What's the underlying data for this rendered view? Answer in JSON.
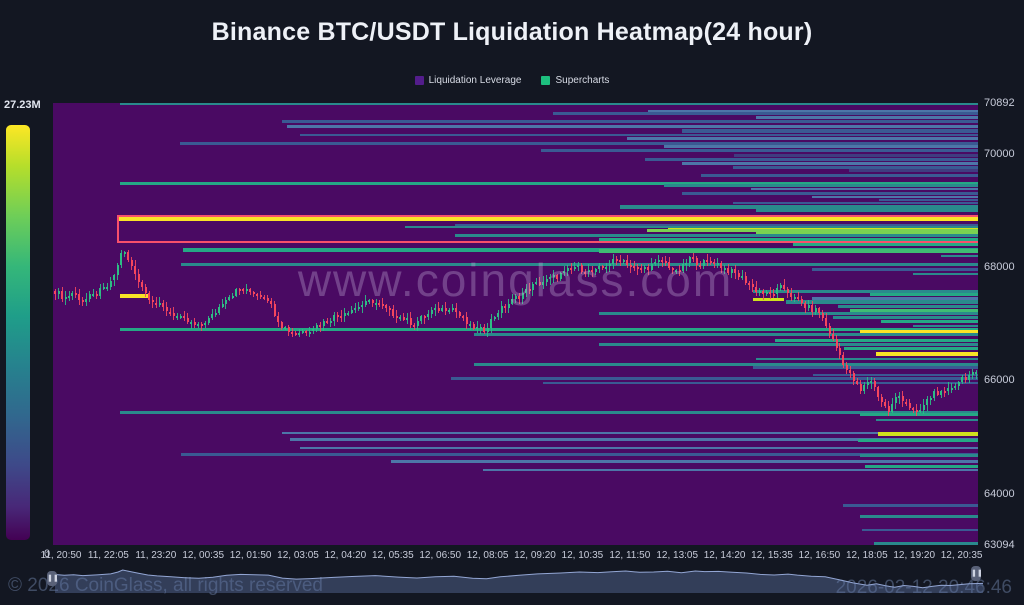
{
  "title": "Binance BTC/USDT Liquidation Heatmap(24 hour)",
  "legend": {
    "items": [
      {
        "label": "Liquidation Leverage",
        "color": "#531d8c"
      },
      {
        "label": "Supercharts",
        "color": "#1dbf7e"
      }
    ]
  },
  "watermark": "www.coinglass.com",
  "colorbar": {
    "max_label": "27.23M",
    "min_label": "0"
  },
  "footer": {
    "copyright": "© 2026 CoinGlass, all rights reserved",
    "timestamp": "2026-02-12 20:46:46"
  },
  "chart_data": {
    "type": "heatmap",
    "subtype": "liquidation-heatmap-with-candlesticks",
    "title": "Binance BTC/USDT Liquidation Heatmap(24 hour)",
    "ylim": [
      63094,
      70892
    ],
    "y_axis_labels": [
      70892,
      70000,
      68000,
      66000,
      64000,
      63094
    ],
    "x_axis_labels": [
      "11, 20:50",
      "11, 22:05",
      "11, 23:20",
      "12, 00:35",
      "12, 01:50",
      "12, 03:05",
      "12, 04:20",
      "12, 05:35",
      "12, 06:50",
      "12, 08:05",
      "12, 09:20",
      "12, 10:35",
      "12, 11:50",
      "12, 13:05",
      "12, 14:20",
      "12, 15:35",
      "12, 16:50",
      "12, 18:05",
      "12, 19:20",
      "12, 20:35"
    ],
    "colorbar_max": 27230000,
    "colorbar_min": 0,
    "grid": false,
    "legend_position": "top-center",
    "palette": {
      "teal": "#2a8a8c",
      "green": "#25a885",
      "green2": "#3fbc73",
      "bgreen": "#7ad151",
      "blue": "#3a5a93",
      "steel": "#4d76a8",
      "dblue": "#3f3c80",
      "yellow": "#f8e327",
      "yellow2": "#cfe11e",
      "candle_up": "#2ebd85",
      "candle_down": "#f5465d",
      "plot_bg": "#4a0a63",
      "highlight": "#f8506b"
    },
    "highlight_box": {
      "price_top": 68916,
      "price_bottom": 68422,
      "start": 0.069,
      "end": 1.0
    },
    "liquidation_bands": [
      {
        "p": 70880,
        "s": 0.072,
        "c": "teal",
        "h": 3
      },
      {
        "p": 70740,
        "s": 0.643,
        "c": "steel",
        "h": 3
      },
      {
        "p": 70700,
        "s": 0.54,
        "c": "blue",
        "h": 3
      },
      {
        "p": 70640,
        "s": 0.76,
        "c": "steel",
        "h": 3
      },
      {
        "p": 70560,
        "s": 0.248,
        "c": "blue",
        "h": 3
      },
      {
        "p": 70470,
        "s": 0.253,
        "c": "steel",
        "h": 3
      },
      {
        "p": 70400,
        "s": 0.68,
        "c": "blue",
        "h": 4
      },
      {
        "p": 70330,
        "s": 0.267,
        "c": "blue",
        "h": 2
      },
      {
        "p": 70260,
        "s": 0.62,
        "c": "steel",
        "h": 3
      },
      {
        "p": 70180,
        "s": 0.137,
        "c": "blue",
        "h": 3
      },
      {
        "p": 70120,
        "s": 0.66,
        "c": "steel",
        "h": 3
      },
      {
        "p": 70060,
        "s": 0.527,
        "c": "blue",
        "h": 3
      },
      {
        "p": 69960,
        "s": 0.736,
        "c": "dblue",
        "h": 3
      },
      {
        "p": 69900,
        "s": 0.64,
        "c": "blue",
        "h": 3
      },
      {
        "p": 69830,
        "s": 0.68,
        "c": "steel",
        "h": 3
      },
      {
        "p": 69760,
        "s": 0.735,
        "c": "blue",
        "h": 3
      },
      {
        "p": 69700,
        "s": 0.86,
        "c": "dblue",
        "h": 3
      },
      {
        "p": 69620,
        "s": 0.7,
        "c": "blue",
        "h": 3
      },
      {
        "p": 69480,
        "s": 0.072,
        "c": "green",
        "h": 3
      },
      {
        "p": 69430,
        "s": 0.66,
        "c": "teal",
        "h": 3
      },
      {
        "p": 69370,
        "s": 0.755,
        "c": "steel",
        "h": 2
      },
      {
        "p": 69300,
        "s": 0.68,
        "c": "blue",
        "h": 3
      },
      {
        "p": 69240,
        "s": 0.82,
        "c": "steel",
        "h": 2
      },
      {
        "p": 69180,
        "s": 0.893,
        "c": "blue",
        "h": 2
      },
      {
        "p": 69120,
        "s": 0.735,
        "c": "blue",
        "h": 2
      },
      {
        "p": 69060,
        "s": 0.613,
        "c": "teal",
        "h": 4
      },
      {
        "p": 69000,
        "s": 0.76,
        "c": "teal",
        "h": 3
      },
      {
        "p": 68845,
        "s": 0.07,
        "c": "yellow",
        "h": 4
      },
      {
        "p": 68740,
        "s": 0.435,
        "c": "blue",
        "h": 2
      },
      {
        "p": 68700,
        "s": 0.38,
        "c": "teal",
        "h": 2
      },
      {
        "p": 68660,
        "s": 0.665,
        "c": "yellow2",
        "h": 3
      },
      {
        "p": 68640,
        "s": 0.642,
        "c": "bgreen",
        "h": 3
      },
      {
        "p": 68590,
        "s": 0.76,
        "c": "bgreen",
        "h": 3
      },
      {
        "p": 68550,
        "s": 0.435,
        "c": "teal",
        "h": 3
      },
      {
        "p": 68480,
        "s": 0.59,
        "c": "green",
        "h": 3
      },
      {
        "p": 68390,
        "s": 0.8,
        "c": "green",
        "h": 3
      },
      {
        "p": 68300,
        "s": 0.14,
        "c": "green",
        "h": 4
      },
      {
        "p": 68280,
        "s": 0.59,
        "c": "green2",
        "h": 4
      },
      {
        "p": 68200,
        "s": 0.96,
        "c": "teal",
        "h": 2
      },
      {
        "p": 68050,
        "s": 0.138,
        "c": "teal",
        "h": 3
      },
      {
        "p": 67950,
        "s": 0.82,
        "c": "blue",
        "h": 3
      },
      {
        "p": 67870,
        "s": 0.93,
        "c": "teal",
        "h": 2
      },
      {
        "p": 67560,
        "s": 0.757,
        "c": "teal",
        "h": 3
      },
      {
        "p": 67520,
        "s": 0.883,
        "c": "green",
        "h": 3
      },
      {
        "p": 67490,
        "s": 0.072,
        "e": 0.103,
        "c": "yellow",
        "h": 4
      },
      {
        "p": 67450,
        "s": 0.82,
        "c": "steel",
        "h": 3
      },
      {
        "p": 67420,
        "s": 0.757,
        "e": 0.79,
        "c": "yellow2",
        "h": 3
      },
      {
        "p": 67380,
        "s": 0.792,
        "c": "teal",
        "h": 4
      },
      {
        "p": 67310,
        "s": 0.849,
        "c": "teal",
        "h": 3
      },
      {
        "p": 67240,
        "s": 0.862,
        "c": "green2",
        "h": 3
      },
      {
        "p": 67180,
        "s": 0.59,
        "c": "teal",
        "h": 3
      },
      {
        "p": 67100,
        "s": 0.843,
        "c": "teal",
        "h": 3
      },
      {
        "p": 67030,
        "s": 0.895,
        "c": "green",
        "h": 3
      },
      {
        "p": 66960,
        "s": 0.93,
        "c": "teal",
        "h": 2
      },
      {
        "p": 66900,
        "s": 0.072,
        "c": "green",
        "h": 3
      },
      {
        "p": 66850,
        "s": 0.872,
        "c": "yellow",
        "h": 4
      },
      {
        "p": 66800,
        "s": 0.455,
        "c": "teal",
        "h": 3
      },
      {
        "p": 66700,
        "s": 0.78,
        "c": "green",
        "h": 3
      },
      {
        "p": 66640,
        "s": 0.59,
        "c": "teal",
        "h": 3
      },
      {
        "p": 66560,
        "s": 0.855,
        "c": "green",
        "h": 3
      },
      {
        "p": 66460,
        "s": 0.89,
        "c": "yellow",
        "h": 4
      },
      {
        "p": 66380,
        "s": 0.76,
        "c": "teal",
        "h": 2
      },
      {
        "p": 66280,
        "s": 0.455,
        "c": "teal",
        "h": 3
      },
      {
        "p": 66220,
        "s": 0.757,
        "c": "blue",
        "h": 3
      },
      {
        "p": 66100,
        "s": 0.822,
        "c": "blue",
        "h": 2
      },
      {
        "p": 66040,
        "s": 0.43,
        "c": "blue",
        "h": 3
      },
      {
        "p": 65950,
        "s": 0.53,
        "c": "blue",
        "h": 2
      },
      {
        "p": 65440,
        "s": 0.072,
        "c": "teal",
        "h": 3
      },
      {
        "p": 65400,
        "s": 0.872,
        "c": "green",
        "h": 3
      },
      {
        "p": 65300,
        "s": 0.89,
        "c": "teal",
        "h": 2
      },
      {
        "p": 65070,
        "s": 0.247,
        "c": "steel",
        "h": 2
      },
      {
        "p": 65060,
        "s": 0.892,
        "c": "yellow2",
        "h": 4
      },
      {
        "p": 64950,
        "s": 0.256,
        "c": "steel",
        "h": 3
      },
      {
        "p": 64930,
        "s": 0.87,
        "c": "green",
        "h": 3
      },
      {
        "p": 64810,
        "s": 0.267,
        "c": "steel",
        "h": 2
      },
      {
        "p": 64690,
        "s": 0.138,
        "c": "blue",
        "h": 3
      },
      {
        "p": 64680,
        "s": 0.872,
        "c": "teal",
        "h": 3
      },
      {
        "p": 64560,
        "s": 0.365,
        "c": "steel",
        "h": 3
      },
      {
        "p": 64480,
        "s": 0.878,
        "c": "green",
        "h": 3
      },
      {
        "p": 64420,
        "s": 0.465,
        "c": "steel",
        "h": 2
      },
      {
        "p": 63800,
        "s": 0.854,
        "c": "blue",
        "h": 3
      },
      {
        "p": 63590,
        "s": 0.872,
        "c": "teal",
        "h": 3
      },
      {
        "p": 63360,
        "s": 0.875,
        "c": "blue",
        "h": 2
      },
      {
        "p": 63130,
        "s": 0.887,
        "c": "teal",
        "h": 3
      }
    ],
    "price_path": [
      [
        0.0,
        67580
      ],
      [
        0.01,
        67450
      ],
      [
        0.02,
        67550
      ],
      [
        0.03,
        67400
      ],
      [
        0.045,
        67520
      ],
      [
        0.06,
        67690
      ],
      [
        0.068,
        68000
      ],
      [
        0.073,
        68330
      ],
      [
        0.08,
        68100
      ],
      [
        0.09,
        67800
      ],
      [
        0.1,
        67500
      ],
      [
        0.11,
        67350
      ],
      [
        0.125,
        67200
      ],
      [
        0.14,
        67050
      ],
      [
        0.155,
        66950
      ],
      [
        0.17,
        67120
      ],
      [
        0.185,
        67450
      ],
      [
        0.2,
        67600
      ],
      [
        0.215,
        67550
      ],
      [
        0.23,
        67480
      ],
      [
        0.245,
        66980
      ],
      [
        0.26,
        66820
      ],
      [
        0.275,
        66900
      ],
      [
        0.3,
        67100
      ],
      [
        0.32,
        67250
      ],
      [
        0.345,
        67400
      ],
      [
        0.37,
        67150
      ],
      [
        0.39,
        67000
      ],
      [
        0.41,
        67220
      ],
      [
        0.43,
        67300
      ],
      [
        0.45,
        66950
      ],
      [
        0.465,
        66880
      ],
      [
        0.48,
        67200
      ],
      [
        0.5,
        67450
      ],
      [
        0.52,
        67680
      ],
      [
        0.545,
        67830
      ],
      [
        0.565,
        68000
      ],
      [
        0.585,
        67900
      ],
      [
        0.6,
        68050
      ],
      [
        0.615,
        68160
      ],
      [
        0.63,
        67950
      ],
      [
        0.645,
        68000
      ],
      [
        0.66,
        68120
      ],
      [
        0.675,
        67880
      ],
      [
        0.69,
        68160
      ],
      [
        0.7,
        68060
      ],
      [
        0.715,
        68100
      ],
      [
        0.73,
        67950
      ],
      [
        0.745,
        67830
      ],
      [
        0.76,
        67600
      ],
      [
        0.775,
        67500
      ],
      [
        0.79,
        67650
      ],
      [
        0.8,
        67480
      ],
      [
        0.815,
        67300
      ],
      [
        0.83,
        67200
      ],
      [
        0.845,
        66700
      ],
      [
        0.86,
        66180
      ],
      [
        0.875,
        65800
      ],
      [
        0.885,
        66050
      ],
      [
        0.895,
        65700
      ],
      [
        0.905,
        65450
      ],
      [
        0.915,
        65750
      ],
      [
        0.925,
        65600
      ],
      [
        0.935,
        65380
      ],
      [
        0.945,
        65600
      ],
      [
        0.955,
        65800
      ],
      [
        0.965,
        65750
      ],
      [
        0.975,
        65900
      ],
      [
        0.985,
        66050
      ],
      [
        1.0,
        66100
      ]
    ]
  }
}
